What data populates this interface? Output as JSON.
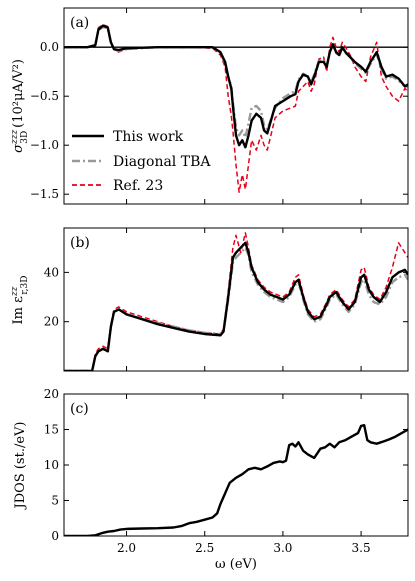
{
  "chart_data": [
    {
      "type": "line",
      "panel_label": "(a)",
      "ylabel_main": "σ",
      "ylabel_sup": "zzz",
      "ylabel_sub": "3D",
      "ylabel_unit": "(10²μA/V²)",
      "xlim": [
        1.6,
        3.8
      ],
      "ylim": [
        -1.6,
        0.4
      ],
      "yticks": [
        0.0,
        -0.5,
        -1.0,
        -1.5
      ],
      "ytick_labels": [
        "0.0",
        "−0.5",
        "−1.0",
        "−1.5"
      ],
      "hline_zero": true,
      "legend_position": "lower-left",
      "series": [
        {
          "name": "This work",
          "color": "#000000",
          "style": "solid",
          "x": [
            1.6,
            1.75,
            1.8,
            1.82,
            1.85,
            1.88,
            1.9,
            1.92,
            1.95,
            2.0,
            2.2,
            2.4,
            2.55,
            2.6,
            2.63,
            2.65,
            2.67,
            2.68,
            2.7,
            2.72,
            2.74,
            2.76,
            2.78,
            2.8,
            2.83,
            2.86,
            2.88,
            2.9,
            2.95,
            3.0,
            3.05,
            3.08,
            3.1,
            3.13,
            3.16,
            3.18,
            3.2,
            3.23,
            3.26,
            3.28,
            3.3,
            3.32,
            3.34,
            3.36,
            3.38,
            3.4,
            3.43,
            3.46,
            3.5,
            3.53,
            3.56,
            3.6,
            3.63,
            3.66,
            3.7,
            3.74,
            3.78,
            3.8
          ],
          "y": [
            0.0,
            0.0,
            0.02,
            0.18,
            0.22,
            0.2,
            0.05,
            -0.02,
            -0.03,
            -0.01,
            0.0,
            0.0,
            0.0,
            -0.05,
            -0.15,
            -0.3,
            -0.42,
            -0.6,
            -0.9,
            -1.0,
            -0.95,
            -1.02,
            -0.9,
            -0.75,
            -0.68,
            -0.72,
            -0.85,
            -0.88,
            -0.6,
            -0.55,
            -0.5,
            -0.48,
            -0.35,
            -0.28,
            -0.3,
            -0.38,
            -0.3,
            -0.15,
            -0.15,
            -0.2,
            -0.05,
            0.03,
            -0.05,
            -0.08,
            0.0,
            -0.05,
            -0.1,
            -0.15,
            -0.2,
            -0.25,
            -0.15,
            -0.05,
            -0.2,
            -0.3,
            -0.28,
            -0.32,
            -0.4,
            -0.38
          ]
        },
        {
          "name": "Diagonal TBA",
          "color": "#999999",
          "style": "dashdot",
          "x": [
            1.6,
            1.75,
            1.8,
            1.82,
            1.85,
            1.88,
            1.9,
            1.92,
            1.95,
            2.0,
            2.2,
            2.4,
            2.55,
            2.6,
            2.63,
            2.65,
            2.67,
            2.68,
            2.7,
            2.72,
            2.74,
            2.76,
            2.78,
            2.8,
            2.83,
            2.86,
            2.88,
            2.9,
            2.95,
            3.0,
            3.05,
            3.08,
            3.1,
            3.13,
            3.16,
            3.18,
            3.2,
            3.23,
            3.26,
            3.28,
            3.3,
            3.32,
            3.34,
            3.36,
            3.38,
            3.4,
            3.43,
            3.46,
            3.5,
            3.53,
            3.56,
            3.6,
            3.63,
            3.66,
            3.7,
            3.74,
            3.78,
            3.8
          ],
          "y": [
            0.0,
            0.0,
            0.02,
            0.17,
            0.21,
            0.19,
            0.04,
            -0.02,
            -0.04,
            -0.02,
            0.0,
            0.0,
            0.0,
            -0.06,
            -0.16,
            -0.3,
            -0.4,
            -0.56,
            -0.82,
            -0.9,
            -0.85,
            -0.92,
            -0.78,
            -0.62,
            -0.6,
            -0.65,
            -0.8,
            -0.84,
            -0.62,
            -0.52,
            -0.47,
            -0.45,
            -0.33,
            -0.27,
            -0.3,
            -0.36,
            -0.28,
            -0.14,
            -0.13,
            -0.2,
            -0.05,
            0.02,
            -0.06,
            -0.08,
            -0.02,
            -0.06,
            -0.1,
            -0.16,
            -0.22,
            -0.26,
            -0.17,
            -0.07,
            -0.22,
            -0.32,
            -0.3,
            -0.34,
            -0.4,
            -0.4
          ]
        },
        {
          "name": "Ref. 23",
          "color": "#e8001a",
          "style": "dashed",
          "x": [
            1.6,
            1.75,
            1.8,
            1.82,
            1.85,
            1.88,
            1.9,
            1.92,
            1.95,
            2.0,
            2.2,
            2.4,
            2.55,
            2.6,
            2.63,
            2.65,
            2.67,
            2.68,
            2.7,
            2.72,
            2.74,
            2.76,
            2.78,
            2.8,
            2.83,
            2.86,
            2.88,
            2.9,
            2.95,
            3.0,
            3.05,
            3.08,
            3.1,
            3.13,
            3.16,
            3.18,
            3.2,
            3.23,
            3.26,
            3.28,
            3.3,
            3.32,
            3.34,
            3.36,
            3.38,
            3.4,
            3.43,
            3.46,
            3.5,
            3.53,
            3.56,
            3.6,
            3.63,
            3.66,
            3.7,
            3.74,
            3.78,
            3.8
          ],
          "y": [
            0.0,
            0.0,
            0.02,
            0.2,
            0.23,
            0.21,
            0.06,
            -0.02,
            -0.05,
            -0.02,
            0.0,
            0.0,
            -0.01,
            -0.08,
            -0.2,
            -0.5,
            -0.7,
            -0.85,
            -1.2,
            -1.48,
            -1.3,
            -1.45,
            -1.2,
            -0.95,
            -1.05,
            -0.9,
            -1.0,
            -1.05,
            -0.72,
            -0.65,
            -0.62,
            -0.6,
            -0.45,
            -0.4,
            -0.35,
            -0.45,
            -0.38,
            -0.12,
            -0.1,
            -0.25,
            0.0,
            0.1,
            0.0,
            -0.05,
            0.05,
            0.0,
            -0.08,
            -0.2,
            -0.3,
            -0.35,
            -0.1,
            0.05,
            -0.3,
            -0.4,
            -0.5,
            -0.55,
            -0.42,
            -0.45
          ]
        }
      ]
    },
    {
      "type": "line",
      "panel_label": "(b)",
      "ylabel_main": "Im ε",
      "ylabel_sup": "zz",
      "ylabel_sub": "r,3D",
      "xlim": [
        1.6,
        3.8
      ],
      "ylim": [
        0,
        58
      ],
      "yticks": [
        20,
        40
      ],
      "ytick_labels": [
        "20",
        "40"
      ],
      "series": [
        {
          "name": "This work",
          "color": "#000000",
          "style": "solid",
          "x": [
            1.6,
            1.7,
            1.78,
            1.8,
            1.82,
            1.85,
            1.88,
            1.9,
            1.92,
            1.95,
            2.0,
            2.1,
            2.2,
            2.3,
            2.4,
            2.5,
            2.6,
            2.62,
            2.65,
            2.68,
            2.7,
            2.73,
            2.76,
            2.78,
            2.8,
            2.84,
            2.88,
            2.92,
            2.96,
            3.0,
            3.04,
            3.08,
            3.1,
            3.13,
            3.16,
            3.2,
            3.24,
            3.28,
            3.3,
            3.34,
            3.38,
            3.42,
            3.46,
            3.5,
            3.52,
            3.55,
            3.58,
            3.62,
            3.66,
            3.7,
            3.74,
            3.78,
            3.8
          ],
          "y": [
            0,
            0,
            0,
            6,
            8,
            9,
            8,
            18,
            24,
            25,
            23,
            21,
            19,
            17.5,
            16,
            15,
            14.5,
            16,
            30,
            46,
            48,
            50,
            52,
            48,
            42,
            36,
            33,
            31,
            30,
            29,
            31,
            36,
            37,
            30,
            24,
            21,
            22,
            27,
            30,
            32,
            28,
            25,
            28,
            38,
            39,
            33,
            30,
            28,
            32,
            38,
            40,
            41,
            39
          ]
        },
        {
          "name": "Diagonal TBA",
          "color": "#999999",
          "style": "dashdot",
          "x": [
            1.6,
            1.7,
            1.78,
            1.8,
            1.82,
            1.85,
            1.88,
            1.9,
            1.92,
            1.95,
            2.0,
            2.1,
            2.2,
            2.3,
            2.4,
            2.5,
            2.6,
            2.62,
            2.65,
            2.68,
            2.7,
            2.73,
            2.76,
            2.78,
            2.8,
            2.84,
            2.88,
            2.92,
            2.96,
            3.0,
            3.04,
            3.08,
            3.1,
            3.13,
            3.16,
            3.2,
            3.24,
            3.28,
            3.3,
            3.34,
            3.38,
            3.42,
            3.46,
            3.5,
            3.52,
            3.55,
            3.58,
            3.62,
            3.66,
            3.7,
            3.74,
            3.78,
            3.8
          ],
          "y": [
            0,
            0,
            0,
            6,
            8,
            9,
            8,
            18,
            24,
            25,
            23,
            21,
            19.5,
            18,
            16.5,
            15.5,
            15,
            16,
            29,
            44,
            46,
            48,
            50,
            47,
            40,
            35,
            32,
            30,
            29,
            28,
            30,
            35,
            36,
            29,
            23,
            20,
            21,
            26,
            29,
            31,
            27,
            24,
            27,
            36,
            37,
            31,
            28,
            27,
            30,
            36,
            38,
            39,
            37
          ]
        },
        {
          "name": "Ref. 23",
          "color": "#e8001a",
          "style": "dashed",
          "x": [
            1.6,
            1.7,
            1.78,
            1.8,
            1.82,
            1.85,
            1.88,
            1.9,
            1.92,
            1.95,
            2.0,
            2.1,
            2.2,
            2.3,
            2.4,
            2.5,
            2.6,
            2.62,
            2.65,
            2.68,
            2.7,
            2.73,
            2.76,
            2.78,
            2.8,
            2.84,
            2.88,
            2.92,
            2.96,
            3.0,
            3.04,
            3.08,
            3.1,
            3.13,
            3.16,
            3.2,
            3.24,
            3.28,
            3.3,
            3.34,
            3.38,
            3.42,
            3.46,
            3.5,
            3.52,
            3.55,
            3.58,
            3.62,
            3.66,
            3.7,
            3.74,
            3.78,
            3.8
          ],
          "y": [
            0,
            0,
            0,
            7,
            9,
            10,
            9,
            19,
            25,
            26,
            24,
            22,
            20,
            18,
            16.5,
            15.5,
            15,
            17,
            32,
            50,
            55,
            48,
            56,
            50,
            43,
            37,
            34,
            32,
            31,
            30,
            32,
            38,
            39,
            31,
            25,
            22,
            23,
            28,
            31,
            33,
            29,
            26,
            29,
            41,
            42,
            34,
            31,
            29,
            34,
            42,
            52,
            48,
            46
          ]
        }
      ]
    },
    {
      "type": "line",
      "panel_label": "(c)",
      "ylabel": "JDOS (st./eV)",
      "xlabel": "ω (eV)",
      "xlim": [
        1.6,
        3.8
      ],
      "ylim": [
        0,
        20
      ],
      "yticks": [
        0,
        5,
        10,
        15,
        20
      ],
      "ytick_labels": [
        "0",
        "5",
        "10",
        "15",
        "20"
      ],
      "xticks": [
        2.0,
        2.5,
        3.0,
        3.5
      ],
      "xtick_labels": [
        "2.0",
        "2.5",
        "3.0",
        "3.5"
      ],
      "series": [
        {
          "name": "This work",
          "color": "#000000",
          "style": "solid",
          "x": [
            1.6,
            1.75,
            1.8,
            1.84,
            1.88,
            1.92,
            1.96,
            2.0,
            2.1,
            2.2,
            2.3,
            2.35,
            2.4,
            2.45,
            2.5,
            2.55,
            2.58,
            2.6,
            2.63,
            2.66,
            2.7,
            2.74,
            2.78,
            2.82,
            2.86,
            2.9,
            2.94,
            2.98,
            3.0,
            3.02,
            3.04,
            3.06,
            3.08,
            3.1,
            3.13,
            3.16,
            3.2,
            3.24,
            3.27,
            3.3,
            3.33,
            3.36,
            3.4,
            3.44,
            3.48,
            3.5,
            3.52,
            3.54,
            3.56,
            3.6,
            3.64,
            3.68,
            3.72,
            3.76,
            3.8
          ],
          "y": [
            0,
            0,
            0.1,
            0.4,
            0.6,
            0.7,
            0.9,
            1.0,
            1.05,
            1.1,
            1.2,
            1.4,
            1.8,
            2.0,
            2.3,
            2.6,
            3.2,
            4.5,
            6.0,
            7.5,
            8.2,
            8.7,
            9.4,
            9.6,
            9.4,
            9.8,
            10.3,
            10.5,
            10.4,
            10.6,
            12.8,
            13.0,
            12.6,
            13.2,
            12.0,
            11.5,
            11.0,
            12.3,
            12.5,
            13.0,
            12.5,
            13.2,
            13.5,
            14.0,
            14.5,
            15.5,
            15.6,
            13.5,
            13.2,
            13.0,
            13.3,
            13.6,
            14.0,
            14.5,
            15.0
          ]
        }
      ]
    }
  ]
}
